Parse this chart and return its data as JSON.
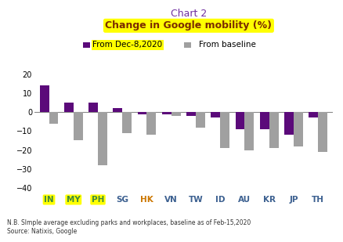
{
  "categories": [
    "IN",
    "MY",
    "PH",
    "SG",
    "HK",
    "VN",
    "TW",
    "ID",
    "AU",
    "KR",
    "JP",
    "TH"
  ],
  "dec8_values": [
    14,
    5,
    5,
    2,
    -1,
    -1,
    -2,
    -3,
    -9,
    -9,
    -12,
    -3
  ],
  "baseline_values": [
    -6,
    -15,
    -28,
    -11,
    -12,
    -2,
    -8,
    -19,
    -20,
    -19,
    -18,
    -21
  ],
  "dec8_color": "#5b0a7a",
  "baseline_color": "#a0a0a0",
  "title_line1": "Chart 2",
  "title_line2": "Change in Google mobility (%)",
  "title_line1_color": "#7030a0",
  "title_line2_color": "#7b2c00",
  "legend_dec8_label": "From Dec-8,2020",
  "legend_baseline_label": "From baseline",
  "ylim": [
    -43,
    26
  ],
  "yticks": [
    -40,
    -30,
    -20,
    -10,
    0,
    10,
    20
  ],
  "note_text": "N.B. SImple average excluding parks and workplaces, baseline as of Feb-15,2020\nSource: Natixis, Google",
  "highlight_yellow": "#ffff00",
  "highlight_countries": [
    "IN",
    "MY",
    "PH"
  ],
  "bar_width": 0.38,
  "cat_colors": {
    "IN": "#3c8a3c",
    "MY": "#3c8a3c",
    "PH": "#3c8a3c",
    "SG": "#3c6090",
    "HK": "#cc7700",
    "VN": "#3c6090",
    "TW": "#3c6090",
    "ID": "#3c6090",
    "AU": "#3c6090",
    "KR": "#3c6090",
    "JP": "#3c6090",
    "TH": "#3c6090"
  }
}
